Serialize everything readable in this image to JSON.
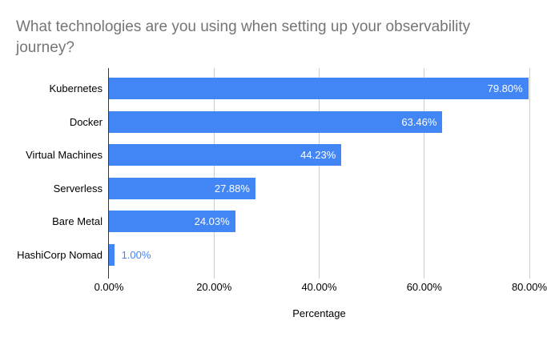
{
  "title_lines": [
    "What technologies are you using when setting up your observability",
    "journey?"
  ],
  "colors": {
    "background": "#ffffff",
    "bar": "#4285f4",
    "title_text": "#757575",
    "axis_text": "#000000",
    "gridline": "#cccccc",
    "baseline": "#333333",
    "value_label_inside": "#ffffff",
    "value_label_outside": "#4285f4"
  },
  "chart_data": {
    "type": "bar",
    "orientation": "horizontal",
    "title": "What technologies are you using when setting up your observability journey?",
    "categories": [
      "Kubernetes",
      "Docker",
      "Virtual Machines",
      "Serverless",
      "Bare Metal",
      "HashiCorp Nomad"
    ],
    "values": [
      79.8,
      63.46,
      44.23,
      27.88,
      24.03,
      1.0
    ],
    "value_labels": [
      "79.80%",
      "63.46%",
      "44.23%",
      "27.88%",
      "24.03%",
      "1.00%"
    ],
    "xlabel": "Percentage",
    "ylabel": "",
    "xlim": [
      0,
      80
    ],
    "x_tick_values": [
      0,
      20,
      40,
      60,
      80
    ],
    "x_tick_labels": [
      "0.00%",
      "20.00%",
      "40.00%",
      "60.00%",
      "80.00%"
    ],
    "grid": true,
    "legend": "none",
    "series_color": "#4285f4"
  }
}
